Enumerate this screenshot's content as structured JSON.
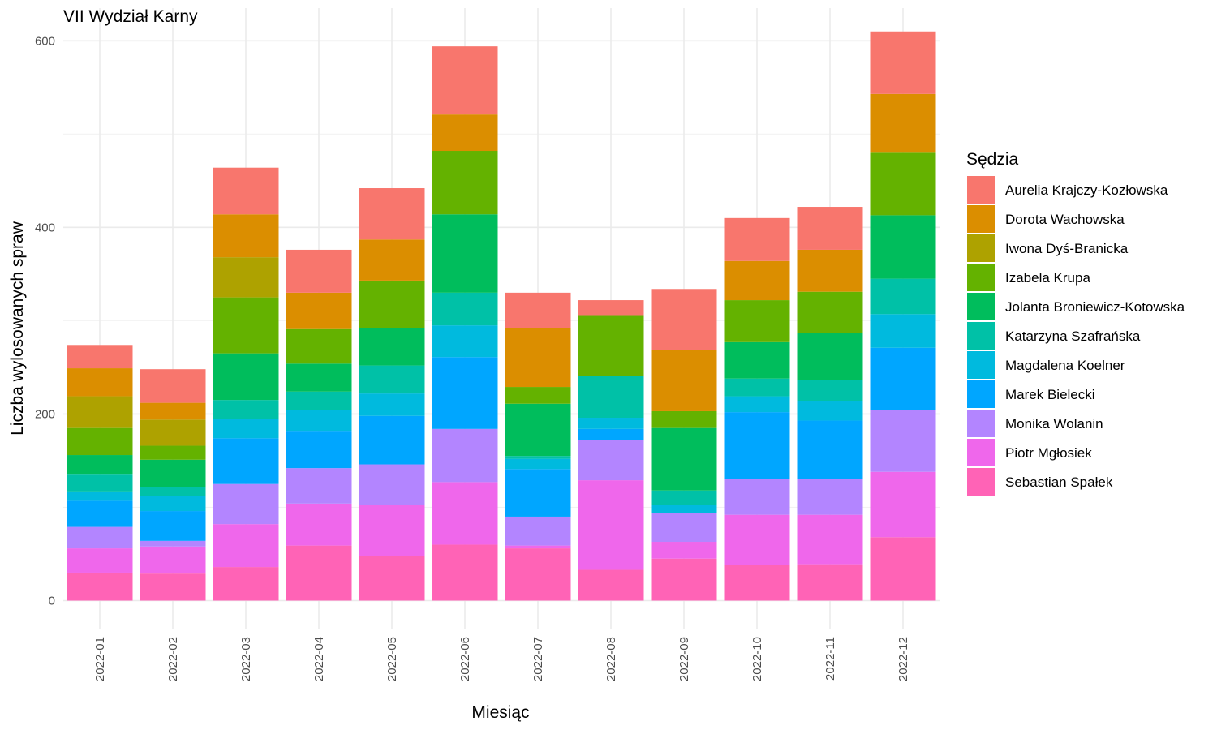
{
  "chart_data": {
    "type": "bar",
    "stacked": true,
    "title": "VII Wydział Karny",
    "xlabel": "Miesiąc",
    "ylabel": "Liczba wylosowanych spraw",
    "ylim": [
      -30,
      635
    ],
    "y_ticks": [
      0,
      200,
      400,
      600
    ],
    "grid": true,
    "legend_title": "Sędzia",
    "legend_position": "right",
    "categories": [
      "2022-01",
      "2022-02",
      "2022-03",
      "2022-04",
      "2022-05",
      "2022-06",
      "2022-07",
      "2022-08",
      "2022-09",
      "2022-10",
      "2022-11",
      "2022-12"
    ],
    "series": [
      {
        "name": "Aurelia Krajczy-Kozłowska",
        "color": "#F8766D",
        "values": [
          25,
          36,
          50,
          46,
          55,
          73,
          38,
          16,
          65,
          46,
          46,
          67
        ]
      },
      {
        "name": "Dorota Wachowska",
        "color": "#DB8E00",
        "values": [
          30,
          18,
          46,
          39,
          44,
          39,
          63,
          0,
          66,
          42,
          45,
          63
        ]
      },
      {
        "name": "Iwona Dyś-Branicka",
        "color": "#AEA200",
        "values": [
          34,
          28,
          43,
          0,
          0,
          0,
          0,
          0,
          0,
          0,
          0,
          0
        ]
      },
      {
        "name": "Izabela Krupa",
        "color": "#64B200",
        "values": [
          29,
          15,
          60,
          37,
          51,
          68,
          18,
          65,
          18,
          45,
          44,
          67
        ]
      },
      {
        "name": "Jolanta Broniewicz-Kotowska",
        "color": "#00BD5C",
        "values": [
          21,
          29,
          50,
          30,
          40,
          84,
          56,
          0,
          67,
          39,
          51,
          68
        ]
      },
      {
        "name": "Katarzyna Szafrańska",
        "color": "#00C1A7",
        "values": [
          18,
          10,
          20,
          20,
          30,
          35,
          3,
          45,
          15,
          19,
          22,
          38
        ]
      },
      {
        "name": "Magdalena Koelner",
        "color": "#00BADE",
        "values": [
          10,
          16,
          21,
          22,
          24,
          34,
          11,
          12,
          9,
          17,
          21,
          36
        ]
      },
      {
        "name": "Marek Bielecki",
        "color": "#00A6FF",
        "values": [
          28,
          32,
          49,
          40,
          52,
          77,
          51,
          12,
          0,
          72,
          63,
          67
        ]
      },
      {
        "name": "Monika Wolanin",
        "color": "#B385FF",
        "values": [
          23,
          6,
          43,
          38,
          43,
          57,
          31,
          43,
          31,
          38,
          38,
          66
        ]
      },
      {
        "name": "Piotr Mgłosiek",
        "color": "#EF67EB",
        "values": [
          26,
          29,
          46,
          45,
          55,
          67,
          3,
          96,
          18,
          54,
          53,
          70
        ]
      },
      {
        "name": "Sebastian Spałek",
        "color": "#FF63B6",
        "values": [
          30,
          29,
          36,
          59,
          48,
          60,
          56,
          33,
          45,
          38,
          39,
          68
        ]
      }
    ]
  }
}
